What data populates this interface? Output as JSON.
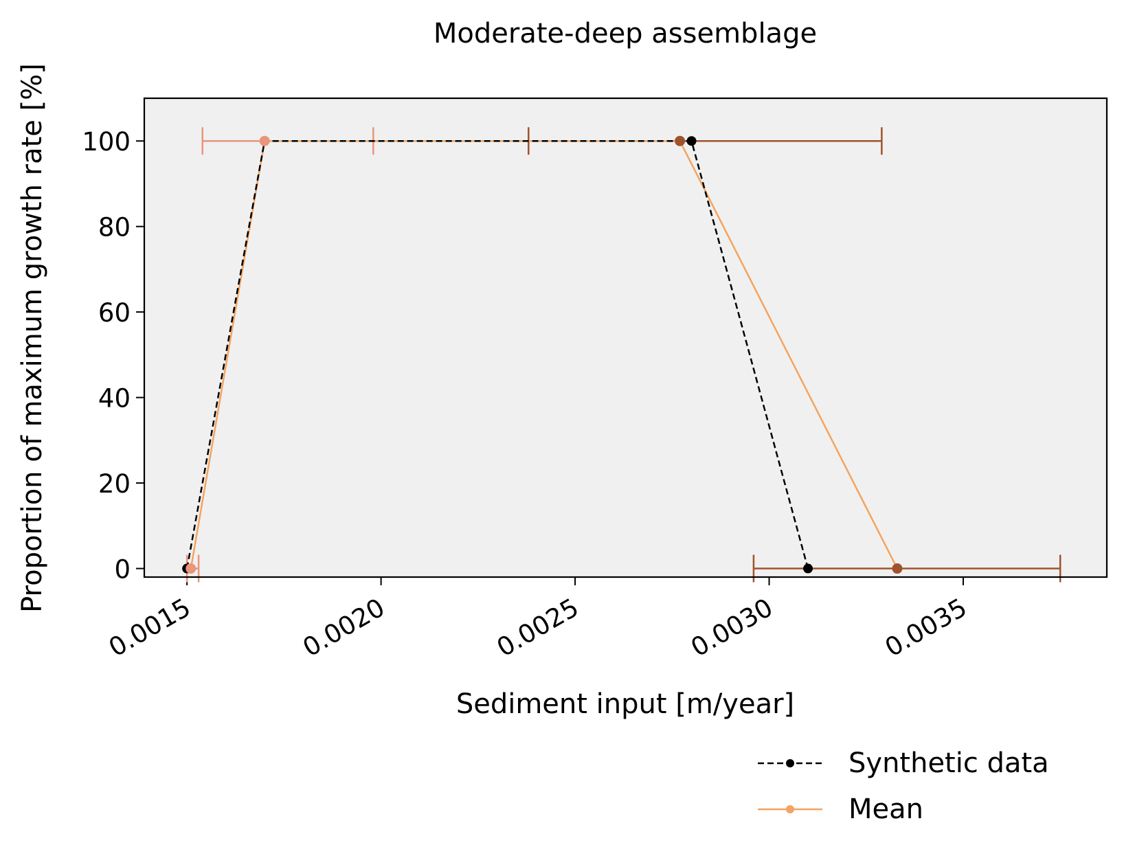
{
  "chart_data": {
    "type": "line",
    "title": "Moderate-deep assemblage",
    "xlabel": "Sediment input [m/year]",
    "ylabel": "Proportion of maximum growth rate [%]",
    "xlim": [
      0.00139,
      0.00387
    ],
    "ylim": [
      -2,
      110
    ],
    "x_ticks": [
      0.0015,
      0.002,
      0.0025,
      0.003,
      0.0035
    ],
    "x_tick_labels": [
      "0.0015",
      "0.0020",
      "0.0025",
      "0.0030",
      "0.0035"
    ],
    "y_ticks": [
      0,
      20,
      40,
      60,
      80,
      100
    ],
    "y_tick_labels": [
      "0",
      "20",
      "40",
      "60",
      "80",
      "100"
    ],
    "background_color": "#f0f0f0",
    "grid": false,
    "legend_position": "below-right",
    "series": [
      {
        "name": "Synthetic data",
        "color": "#000000",
        "style": "dashed",
        "x": [
          0.0015,
          0.0017,
          0.0028,
          0.0031
        ],
        "y": [
          0,
          100,
          100,
          0
        ]
      },
      {
        "name": "Mean",
        "color": "#f4a460",
        "style": "solid",
        "x": [
          0.00151,
          0.0017,
          0.00277,
          0.00333
        ],
        "y": [
          0,
          100,
          100,
          0
        ],
        "errorbars": [
          {
            "x": 0.00151,
            "y": 0,
            "xmin": 0.0015,
            "xmax": 0.00153,
            "color": "#e9967a"
          },
          {
            "x": 0.0017,
            "y": 100,
            "xmin": 0.00154,
            "xmax": 0.00198,
            "color": "#e9967a"
          },
          {
            "x": 0.00277,
            "y": 100,
            "xmin": 0.00238,
            "xmax": 0.00329,
            "color": "#a0522d"
          },
          {
            "x": 0.00333,
            "y": 0,
            "xmin": 0.00296,
            "xmax": 0.00375,
            "color": "#a0522d"
          }
        ],
        "marker_colors": [
          "#e9967a",
          "#e9967a",
          "#a0522d",
          "#a0522d"
        ]
      }
    ]
  }
}
